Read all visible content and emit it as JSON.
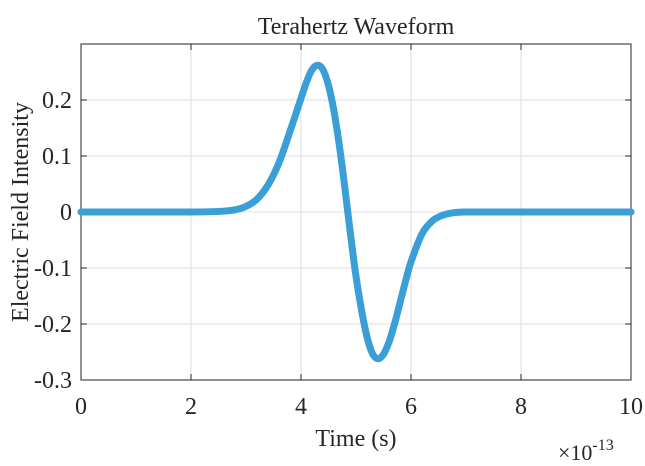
{
  "chart_data": {
    "type": "line",
    "title": "Terahertz Waveform",
    "xlabel": "Time (s)",
    "ylabel": "Electric Field Intensity",
    "x_exponent_base": "×10",
    "x_exponent_power": "-13",
    "xlim": [
      0,
      10
    ],
    "ylim": [
      -0.3,
      0.3
    ],
    "xticks": [
      0,
      2,
      4,
      6,
      8,
      10
    ],
    "yticks": [
      -0.3,
      -0.2,
      -0.1,
      0,
      0.1,
      0.2
    ],
    "xtick_labels": [
      "0",
      "2",
      "4",
      "6",
      "8",
      "10"
    ],
    "ytick_labels": [
      "-0.3",
      "-0.2",
      "-0.1",
      "0",
      "0.1",
      "0.2"
    ],
    "grid": true,
    "series": [
      {
        "color": "#3a9fd6",
        "x": [
          0,
          0.5,
          1,
          1.5,
          2,
          2.5,
          2.8,
          3,
          3.2,
          3.4,
          3.6,
          3.8,
          4,
          4.1,
          4.2,
          4.3,
          4.4,
          4.5,
          4.6,
          4.7,
          4.8,
          4.9,
          5,
          5.1,
          5.2,
          5.3,
          5.4,
          5.5,
          5.6,
          5.7,
          5.8,
          5.9,
          6,
          6.2,
          6.4,
          6.6,
          6.8,
          7,
          7.2,
          7.5,
          8,
          8.5,
          9,
          9.5,
          10
        ],
        "y": [
          0,
          0,
          0,
          0,
          0,
          0.001,
          0.004,
          0.01,
          0.023,
          0.048,
          0.088,
          0.144,
          0.203,
          0.232,
          0.254,
          0.262,
          0.254,
          0.226,
          0.18,
          0.117,
          0.041,
          -0.04,
          -0.115,
          -0.175,
          -0.223,
          -0.253,
          -0.262,
          -0.254,
          -0.232,
          -0.2,
          -0.162,
          -0.124,
          -0.089,
          -0.039,
          -0.015,
          -0.005,
          -0.001,
          0,
          0,
          0,
          0,
          0,
          0,
          0,
          0
        ]
      }
    ]
  }
}
